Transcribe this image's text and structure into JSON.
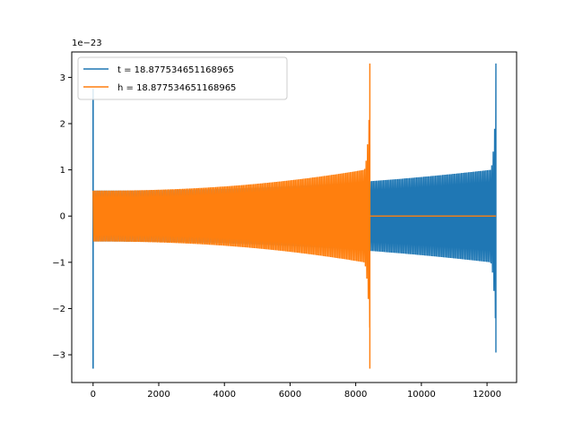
{
  "chart_data": {
    "type": "line",
    "title": "",
    "xlabel": "",
    "ylabel": "",
    "y_offset_text": "1e−23",
    "xlim": [
      -650,
      12900
    ],
    "ylim": [
      -3.6,
      3.55
    ],
    "x_ticks": [
      0,
      2000,
      4000,
      6000,
      8000,
      10000,
      12000
    ],
    "x_tick_labels": [
      "0",
      "2000",
      "4000",
      "6000",
      "8000",
      "10000",
      "12000"
    ],
    "y_ticks": [
      -3,
      -2,
      -1,
      0,
      1,
      2,
      3
    ],
    "y_tick_labels": [
      "−3",
      "−2",
      "−1",
      "0",
      "1",
      "2",
      "3"
    ],
    "grid": false,
    "legend_position": "upper-left",
    "series": [
      {
        "name": "t = 18.877534651168965",
        "color": "#1f77b4",
        "waveform": {
          "x_start": 0,
          "x_end": 12270,
          "base_amplitude": 0.55,
          "envelope_at_end": 1.0,
          "peak_amplitude": 3.3,
          "chirp_start": 12100,
          "extra_peaks": [
            {
              "x": 0,
              "ymin": -3.3,
              "ymax": 2.75
            }
          ],
          "final_peak": {
            "x": 12270,
            "ymin": -2.95,
            "ymax": 3.3
          },
          "zero_tail_until": null
        }
      },
      {
        "name": "h = 18.877534651168965",
        "color": "#ff7f0e",
        "waveform": {
          "x_start": 0,
          "x_end": 8430,
          "base_amplitude": 0.55,
          "envelope_at_end": 1.0,
          "peak_amplitude": 3.3,
          "chirp_start": 8250,
          "extra_peaks": [],
          "final_peak": {
            "x": 8430,
            "ymin": -3.3,
            "ymax": 3.3
          },
          "zero_tail_until": 12270
        }
      }
    ]
  }
}
